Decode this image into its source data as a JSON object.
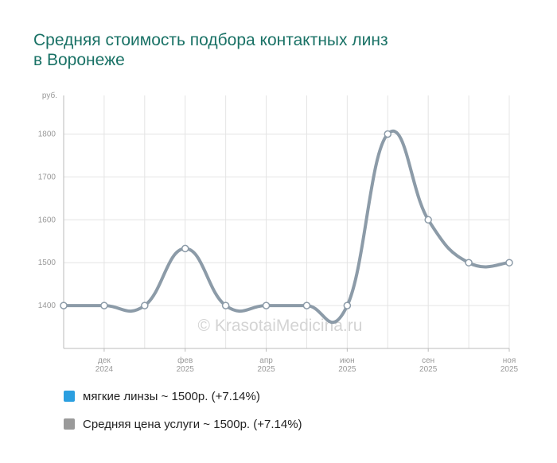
{
  "title": {
    "line1": "Средняя стоимость подбора контактных линз",
    "line2": "в Воронеже"
  },
  "watermark": "© KrasotaiMedicina.ru",
  "legend": [
    {
      "label": "мягкие линзы ~ 1500р. (+7.14%)",
      "color": "#2b9fe0"
    },
    {
      "label": "Средняя цена услуги ~ 1500р. (+7.14%)",
      "color": "#9a9a9a"
    }
  ],
  "chart_data": {
    "type": "line",
    "y_unit_label": "руб.",
    "ylim": [
      1300,
      1890
    ],
    "y_ticks": [
      1400,
      1500,
      1600,
      1700,
      1800
    ],
    "grid": true,
    "legend_position": "bottom-left",
    "x_ticks": [
      {
        "month": "дек",
        "year": "2024"
      },
      {
        "month": "фев",
        "year": "2025"
      },
      {
        "month": "апр",
        "year": "2025"
      },
      {
        "month": "июн",
        "year": "2025"
      },
      {
        "month": "сен",
        "year": "2025"
      },
      {
        "month": "ноя",
        "year": "2025"
      }
    ],
    "series": [
      {
        "name": "мягкие линзы",
        "color": "#2b9fe0",
        "values": [
          1400,
          1400,
          1400,
          1533,
          1400,
          1400,
          1400,
          1400,
          1800,
          1600,
          1500,
          1500
        ]
      },
      {
        "name": "Средняя цена услуги",
        "color": "#8c9ba8",
        "values": [
          1400,
          1400,
          1400,
          1533,
          1400,
          1400,
          1400,
          1400,
          1800,
          1600,
          1500,
          1500
        ]
      }
    ]
  }
}
